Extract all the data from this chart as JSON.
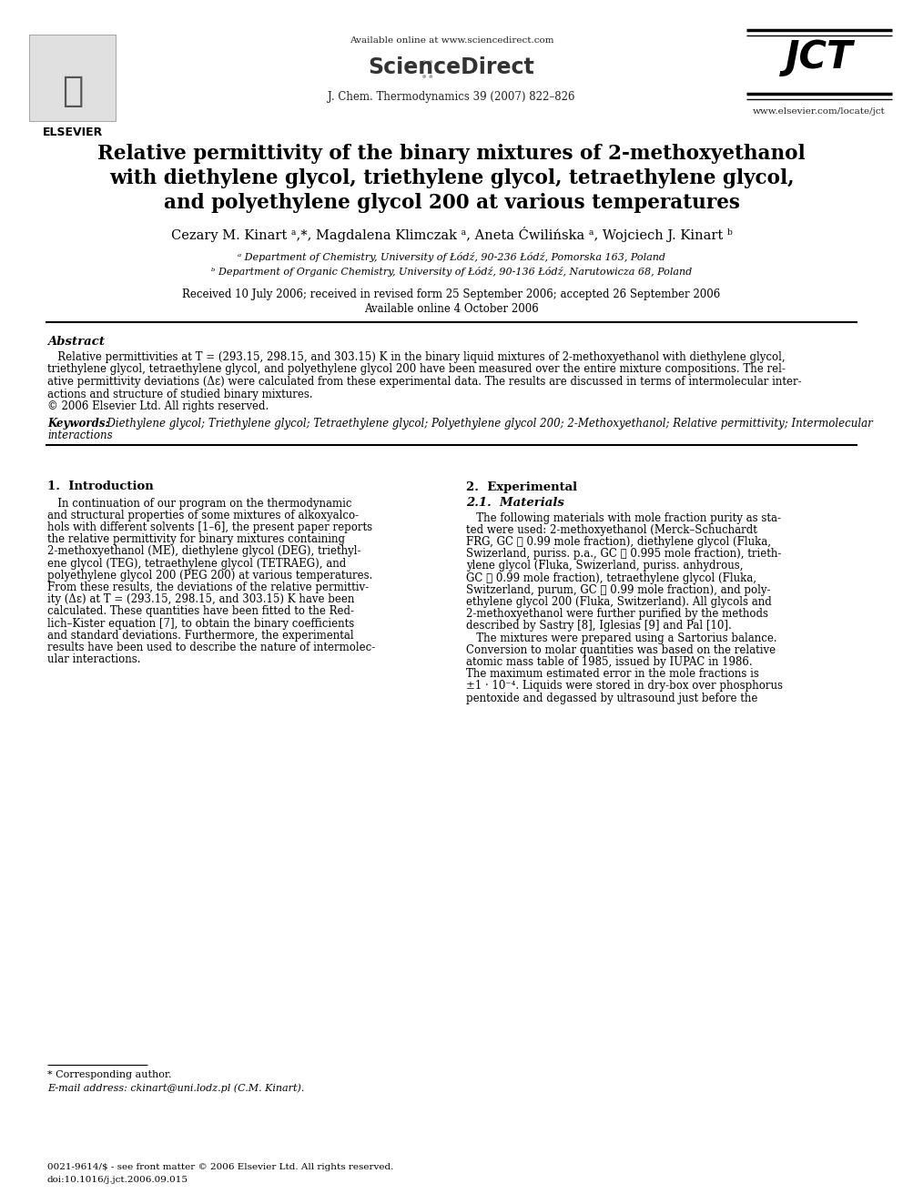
{
  "background_color": "#ffffff",
  "header_available": "Available online at www.sciencedirect.com",
  "header_sciencedirect": "ScienceDirect",
  "header_journal": "J. Chem. Thermodynamics 39 (2007) 822–826",
  "header_website": "www.elsevier.com/locate/jct",
  "header_elsevier": "ELSEVIER",
  "header_jct": "JCT",
  "title_line1": "Relative permittivity of the binary mixtures of 2-methoxyethanol",
  "title_line2": "with diethylene glycol, triethylene glycol, tetraethylene glycol,",
  "title_line3": "and polyethylene glycol 200 at various temperatures",
  "authors": "Cezary M. Kinart ᵃ,*, Magdalena Klimczak ᵃ, Aneta Ćwilińska ᵃ, Wojciech J. Kinart ᵇ",
  "affil_a": "ᵃ Department of Chemistry, University of Łódź, 90-236 Łódź, Pomorska 163, Poland",
  "affil_b": "ᵇ Department of Organic Chemistry, University of Łódź, 90-136 Łódź, Narutowicza 68, Poland",
  "received": "Received 10 July 2006; received in revised form 25 September 2006; accepted 26 September 2006",
  "available_online": "Available online 4 October 2006",
  "abstract_title": "Abstract",
  "abstract_lines": [
    "   Relative permittivities at T = (293.15, 298.15, and 303.15) K in the binary liquid mixtures of 2-methoxyethanol with diethylene glycol,",
    "triethylene glycol, tetraethylene glycol, and polyethylene glycol 200 have been measured over the entire mixture compositions. The rel-",
    "ative permittivity deviations (Δε) were calculated from these experimental data. The results are discussed in terms of intermolecular inter-",
    "actions and structure of studied binary mixtures.",
    "© 2006 Elsevier Ltd. All rights reserved."
  ],
  "keywords_bold": "Keywords:",
  "keywords_text": "  Diethylene glycol; Triethylene glycol; Tetraethylene glycol; Polyethylene glycol 200; 2-Methoxyethanol; Relative permittivity; Intermolecular",
  "keywords_line2": "interactions",
  "sec1_title": "1.  Introduction",
  "sec1_lines": [
    "   In continuation of our program on the thermodynamic",
    "and structural properties of some mixtures of alkoxyalco-",
    "hols with different solvents [1–6], the present paper reports",
    "the relative permittivity for binary mixtures containing",
    "2-methoxyethanol (ME), diethylene glycol (DEG), triethyl-",
    "ene glycol (TEG), tetraethylene glycol (TETRAEG), and",
    "polyethylene glycol 200 (PEG 200) at various temperatures.",
    "From these results, the deviations of the relative permittiv-",
    "ity (Δε) at T = (293.15, 298.15, and 303.15) K have been",
    "calculated. These quantities have been fitted to the Red-",
    "lich–Kister equation [7], to obtain the binary coefficients",
    "and standard deviations. Furthermore, the experimental",
    "results have been used to describe the nature of intermolec-",
    "ular interactions."
  ],
  "sec2_title": "2.  Experimental",
  "sec21_title": "2.1.  Materials",
  "sec2_lines": [
    "   The following materials with mole fraction purity as sta-",
    "ted were used: 2-methoxyethanol (Merck–Schuchardt",
    "FRG, GC ⩾ 0.99 mole fraction), diethylene glycol (Fluka,",
    "Swizerland, puriss. p.a., GC ⩾ 0.995 mole fraction), trieth-",
    "ylene glycol (Fluka, Swizerland, puriss. anhydrous,",
    "GC ⩾ 0.99 mole fraction), tetraethylene glycol (Fluka,",
    "Switzerland, purum, GC ⩾ 0.99 mole fraction), and poly-",
    "ethylene glycol 200 (Fluka, Switzerland). All glycols and",
    "2-methoxyethanol were further purified by the methods",
    "described by Sastry [8], Iglesias [9] and Pal [10].",
    "   The mixtures were prepared using a Sartorius balance.",
    "Conversion to molar quantities was based on the relative",
    "atomic mass table of 1985, issued by IUPAC in 1986.",
    "The maximum estimated error in the mole fractions is",
    "±1 · 10⁻⁴. Liquids were stored in dry-box over phosphorus",
    "pentoxide and degassed by ultrasound just before the"
  ],
  "footnote1": "* Corresponding author.",
  "footnote2": "E-mail address: ckinart@uni.lodz.pl (C.M. Kinart).",
  "bottom1": "0021-9614/$ - see front matter © 2006 Elsevier Ltd. All rights reserved.",
  "bottom2": "doi:10.1016/j.jct.2006.09.015"
}
